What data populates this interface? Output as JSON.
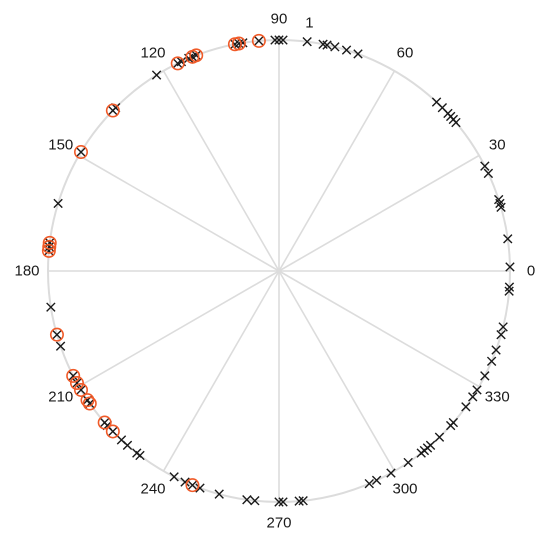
{
  "chart_data": {
    "type": "scatter",
    "coordinate_system": "polar",
    "angle_unit": "degrees",
    "radius_range": [
      0,
      1
    ],
    "grid": true,
    "angle_ticks": [
      0,
      30,
      60,
      90,
      120,
      150,
      180,
      210,
      240,
      270,
      300,
      330
    ],
    "tick_labels": [
      "0",
      "30",
      "60",
      "90",
      "120",
      "150",
      "180",
      "210",
      "240",
      "270",
      "300",
      "330"
    ],
    "annotations": [
      {
        "text": "1",
        "angle": 83,
        "radius": 1
      }
    ],
    "series": [
      {
        "marker": "x",
        "color": "#1a1a1a",
        "points": [
          {
            "theta": 90,
            "r": 1
          },
          {
            "theta": 89,
            "r": 1
          },
          {
            "theta": 91,
            "r": 1
          },
          {
            "theta": 83,
            "r": 1
          },
          {
            "theta": 79,
            "r": 1
          },
          {
            "theta": 78,
            "r": 1
          },
          {
            "theta": 76,
            "r": 1
          },
          {
            "theta": 73,
            "r": 1
          },
          {
            "theta": 70,
            "r": 1
          },
          {
            "theta": 47,
            "r": 1
          },
          {
            "theta": 45,
            "r": 1
          },
          {
            "theta": 43,
            "r": 1
          },
          {
            "theta": 42,
            "r": 1
          },
          {
            "theta": 41,
            "r": 1
          },
          {
            "theta": 40,
            "r": 1
          },
          {
            "theta": 27,
            "r": 1
          },
          {
            "theta": 25,
            "r": 1
          },
          {
            "theta": 18,
            "r": 1
          },
          {
            "theta": 17,
            "r": 1
          },
          {
            "theta": 16,
            "r": 1
          },
          {
            "theta": 8,
            "r": 1
          },
          {
            "theta": 1,
            "r": 1
          },
          {
            "theta": -4,
            "r": 1
          },
          {
            "theta": -5,
            "r": 1
          },
          {
            "theta": -14,
            "r": 1
          },
          {
            "theta": -16,
            "r": 1
          },
          {
            "theta": -20,
            "r": 1
          },
          {
            "theta": -23,
            "r": 1
          },
          {
            "theta": -27,
            "r": 1
          },
          {
            "theta": -31,
            "r": 1
          },
          {
            "theta": -33,
            "r": 1
          },
          {
            "theta": -36,
            "r": 1
          },
          {
            "theta": -41,
            "r": 1
          },
          {
            "theta": -42,
            "r": 1
          },
          {
            "theta": -46,
            "r": 1
          },
          {
            "theta": -49,
            "r": 1
          },
          {
            "theta": -50,
            "r": 1
          },
          {
            "theta": -51,
            "r": 1
          },
          {
            "theta": -52,
            "r": 1
          },
          {
            "theta": -56,
            "r": 1
          },
          {
            "theta": -61,
            "r": 1
          },
          {
            "theta": -65,
            "r": 1
          },
          {
            "theta": -67,
            "r": 1
          },
          {
            "theta": -84,
            "r": 1
          },
          {
            "theta": -85,
            "r": 1
          },
          {
            "theta": -89,
            "r": 1
          },
          {
            "theta": -90,
            "r": 1
          },
          {
            "theta": -96,
            "r": 1
          },
          {
            "theta": -98,
            "r": 1
          },
          {
            "theta": -105,
            "r": 1
          },
          {
            "theta": -110,
            "r": 1
          },
          {
            "theta": -112,
            "r": 1
          },
          {
            "theta": -114,
            "r": 1
          },
          {
            "theta": -117,
            "r": 1
          },
          {
            "theta": -127,
            "r": 1
          },
          {
            "theta": -128,
            "r": 1
          },
          {
            "theta": -131,
            "r": 1
          },
          {
            "theta": -133,
            "r": 1
          },
          {
            "theta": -136,
            "r": 1
          },
          {
            "theta": -138,
            "r": 1
          },
          {
            "theta": -139,
            "r": 1
          },
          {
            "theta": -145,
            "r": 1
          },
          {
            "theta": -146,
            "r": 1
          },
          {
            "theta": -149,
            "r": 1
          },
          {
            "theta": -151,
            "r": 1
          },
          {
            "theta": -153,
            "r": 1
          },
          {
            "theta": -161,
            "r": 1
          },
          {
            "theta": -164,
            "r": 1
          },
          {
            "theta": -171,
            "r": 1
          },
          {
            "theta": 175,
            "r": 1
          },
          {
            "theta": 174,
            "r": 1
          },
          {
            "theta": 173,
            "r": 1
          },
          {
            "theta": 163,
            "r": 1
          },
          {
            "theta": 149,
            "r": 1
          },
          {
            "theta": 136,
            "r": 1
          },
          {
            "theta": 135,
            "r": 1
          },
          {
            "theta": 122,
            "r": 1
          },
          {
            "theta": 116,
            "r": 1
          },
          {
            "theta": 115,
            "r": 1
          },
          {
            "theta": 113,
            "r": 1
          },
          {
            "theta": 112,
            "r": 1
          },
          {
            "theta": 111,
            "r": 1
          },
          {
            "theta": 101,
            "r": 1
          },
          {
            "theta": 100,
            "r": 1
          },
          {
            "theta": 99,
            "r": 1
          },
          {
            "theta": 95,
            "r": 1
          }
        ]
      },
      {
        "marker": "circle",
        "color": "#f05a28",
        "points": [
          {
            "theta": 95,
            "r": 1
          },
          {
            "theta": 100,
            "r": 1
          },
          {
            "theta": 101,
            "r": 1
          },
          {
            "theta": 111,
            "r": 1
          },
          {
            "theta": 112,
            "r": 1
          },
          {
            "theta": 116,
            "r": 1
          },
          {
            "theta": 136,
            "r": 1
          },
          {
            "theta": 149,
            "r": 1
          },
          {
            "theta": 173,
            "r": 1
          },
          {
            "theta": 174,
            "r": 1
          },
          {
            "theta": 175,
            "r": 1
          },
          {
            "theta": -164,
            "r": 1
          },
          {
            "theta": -153,
            "r": 1
          },
          {
            "theta": -151,
            "r": 1
          },
          {
            "theta": -149,
            "r": 1
          },
          {
            "theta": -146,
            "r": 1
          },
          {
            "theta": -145,
            "r": 1
          },
          {
            "theta": -139,
            "r": 1
          },
          {
            "theta": -136,
            "r": 1
          },
          {
            "theta": -112,
            "r": 1
          }
        ]
      }
    ]
  },
  "colors": {
    "grid": "#dcdcdc",
    "marker_x": "#1a1a1a",
    "marker_circle": "#f05a28"
  }
}
